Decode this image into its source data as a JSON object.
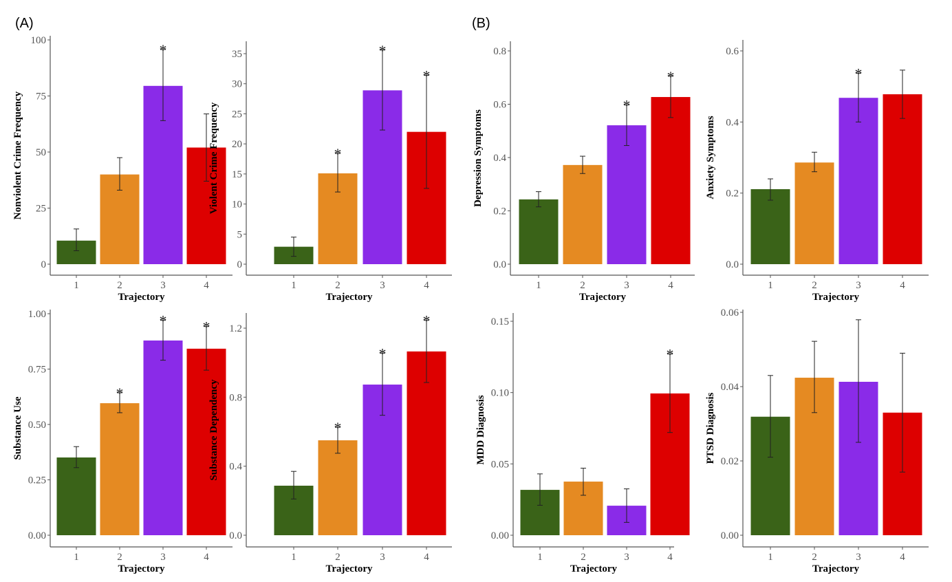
{
  "panel_labels": [
    "(A)",
    "(B)"
  ],
  "colors": [
    "#3a6318",
    "#e58a22",
    "#8a2be8",
    "#dd0000"
  ],
  "chart_data": [
    {
      "type": "bar",
      "group": "(A)",
      "ylabel": "Nonviolent Crime Frequency",
      "xlabel": "Trajectory",
      "categories": [
        "1",
        "2",
        "3",
        "4"
      ],
      "values": [
        10.5,
        40,
        79.5,
        52
      ],
      "error_low": [
        6,
        33,
        64,
        37
      ],
      "error_high": [
        15.7,
        47.5,
        95.7,
        67
      ],
      "significant": [
        false,
        false,
        true,
        false
      ],
      "yticks": [
        "0",
        "25",
        "50",
        "75",
        "100"
      ],
      "ylim": [
        0,
        100
      ]
    },
    {
      "type": "bar",
      "group": "(A)",
      "ylabel": "Violent Crime Frequency",
      "xlabel": "Trajectory",
      "categories": [
        "1",
        "2",
        "3",
        "4"
      ],
      "values": [
        2.9,
        15.1,
        28.9,
        22
      ],
      "error_low": [
        1.3,
        12,
        22.3,
        12.6
      ],
      "error_high": [
        4.5,
        18.4,
        35.6,
        31.4
      ],
      "significant": [
        false,
        true,
        true,
        true
      ],
      "yticks": [
        "0",
        "5",
        "10",
        "15",
        "20",
        "25",
        "30",
        "35"
      ],
      "ylim": [
        0,
        35
      ]
    },
    {
      "type": "bar",
      "group": "(B)",
      "ylabel": "Depression Symptoms",
      "xlabel": "Trajectory",
      "categories": [
        "1",
        "2",
        "3",
        "4"
      ],
      "values": [
        0.243,
        0.372,
        0.521,
        0.627
      ],
      "error_low": [
        0.215,
        0.34,
        0.445,
        0.55
      ],
      "error_high": [
        0.272,
        0.405,
        0.597,
        0.705
      ],
      "significant": [
        false,
        false,
        true,
        true
      ],
      "yticks": [
        "0.0",
        "0.2",
        "0.4",
        "0.6",
        "0.8"
      ],
      "ylim": [
        0,
        0.8
      ]
    },
    {
      "type": "bar",
      "group": "(B)",
      "ylabel": "Anxiety Symptoms",
      "xlabel": "Trajectory",
      "categories": [
        "1",
        "2",
        "3",
        "4"
      ],
      "values": [
        0.211,
        0.286,
        0.468,
        0.478
      ],
      "error_low": [
        0.18,
        0.26,
        0.4,
        0.41
      ],
      "error_high": [
        0.24,
        0.315,
        0.537,
        0.546
      ],
      "significant": [
        false,
        false,
        true,
        false
      ],
      "yticks": [
        "0.0",
        "0.2",
        "0.4",
        "0.6"
      ],
      "ylim": [
        0,
        0.6
      ]
    },
    {
      "type": "bar",
      "group": "(A)",
      "ylabel": "Substance Use",
      "xlabel": "Trajectory",
      "categories": [
        "1",
        "2",
        "3",
        "4"
      ],
      "values": [
        0.351,
        0.596,
        0.879,
        0.842
      ],
      "error_low": [
        0.305,
        0.553,
        0.79,
        0.745
      ],
      "error_high": [
        0.4,
        0.643,
        0.97,
        0.942
      ],
      "significant": [
        false,
        true,
        true,
        true
      ],
      "yticks": [
        "0.00",
        "0.25",
        "0.50",
        "0.75",
        "1.00"
      ],
      "ylim": [
        0,
        1
      ]
    },
    {
      "type": "bar",
      "group": "(A)",
      "ylabel": "Substance Dependency",
      "xlabel": "Trajectory",
      "categories": [
        "1",
        "2",
        "3",
        "4"
      ],
      "values": [
        0.287,
        0.55,
        0.873,
        1.065
      ],
      "error_low": [
        0.21,
        0.475,
        0.695,
        0.885
      ],
      "error_high": [
        0.37,
        0.625,
        1.055,
        1.245
      ],
      "significant": [
        false,
        true,
        true,
        true
      ],
      "yticks": [
        "0.0",
        "0.4",
        "0.8",
        "1.2"
      ],
      "ylim": [
        0,
        1.2
      ]
    },
    {
      "type": "bar",
      "group": "(B)",
      "ylabel": "MDD Diagnosis",
      "xlabel": "Trajectory",
      "categories": [
        "1",
        "2",
        "3",
        "4"
      ],
      "values": [
        0.0318,
        0.0376,
        0.0207,
        0.0994
      ],
      "error_low": [
        0.021,
        0.028,
        0.009,
        0.072
      ],
      "error_high": [
        0.043,
        0.047,
        0.0325,
        0.127
      ],
      "significant": [
        false,
        false,
        false,
        true
      ],
      "yticks": [
        "0.00",
        "0.05",
        "0.10",
        "0.15"
      ],
      "ylim": [
        0,
        0.15
      ]
    },
    {
      "type": "bar",
      "group": "(B)",
      "ylabel": "PTSD Diagnosis",
      "xlabel": "Trajectory",
      "categories": [
        "1",
        "2",
        "3",
        "4"
      ],
      "values": [
        0.0319,
        0.0424,
        0.0413,
        0.033
      ],
      "error_low": [
        0.021,
        0.033,
        0.025,
        0.017
      ],
      "error_high": [
        0.043,
        0.0522,
        0.058,
        0.049
      ],
      "significant": [
        false,
        false,
        false,
        false
      ],
      "yticks": [
        "0.00",
        "0.02",
        "0.04",
        "0.06"
      ],
      "ylim": [
        0,
        0.06
      ]
    }
  ],
  "significance_marker": "*"
}
